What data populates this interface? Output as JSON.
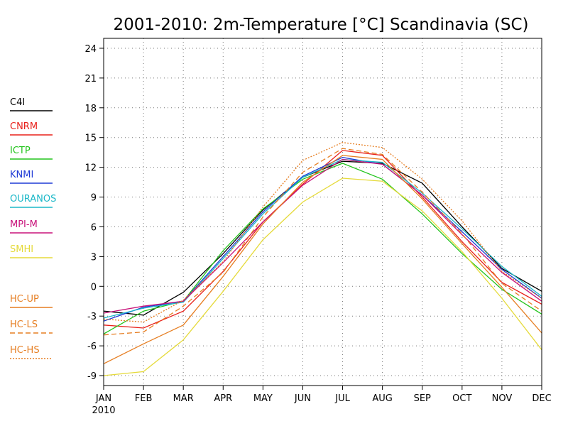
{
  "chart_data": {
    "type": "line",
    "title": "2001-2010: 2m-Temperature [°C] Scandinavia (SC)",
    "categories": [
      "JAN",
      "FEB",
      "MAR",
      "APR",
      "MAY",
      "JUN",
      "JUL",
      "AUG",
      "SEP",
      "OCT",
      "NOV",
      "DEC"
    ],
    "x_sublabel": "2010",
    "ylim": [
      -10,
      25
    ],
    "yticks": [
      -9,
      -6,
      -3,
      0,
      3,
      6,
      9,
      12,
      15,
      18,
      21,
      24
    ],
    "grid": true,
    "legend_position": "left",
    "series": [
      {
        "name": "C4I",
        "color": "#000000",
        "style": "solid",
        "values": [
          -2.5,
          -2.9,
          -0.6,
          3.3,
          7.7,
          11.0,
          12.6,
          12.4,
          10.4,
          6.0,
          1.8,
          -0.5
        ]
      },
      {
        "name": "CNRM",
        "color": "#e8201a",
        "style": "solid",
        "values": [
          -3.9,
          -4.2,
          -2.5,
          1.5,
          6.5,
          10.3,
          13.7,
          13.2,
          9.0,
          4.5,
          0.4,
          -1.8
        ]
      },
      {
        "name": "ICTP",
        "color": "#22c41c",
        "style": "solid",
        "values": [
          -4.8,
          -2.5,
          -1.5,
          3.6,
          7.8,
          10.8,
          12.4,
          10.8,
          7.3,
          3.3,
          -0.3,
          -2.8
        ]
      },
      {
        "name": "KNMI",
        "color": "#1f3ad6",
        "style": "solid",
        "values": [
          -3.5,
          -2.1,
          -1.5,
          3.0,
          7.5,
          11.1,
          13.0,
          12.3,
          9.2,
          5.5,
          1.7,
          -1.2
        ]
      },
      {
        "name": "OURANOS",
        "color": "#1cb8c8",
        "style": "solid",
        "values": [
          -3.2,
          -2.2,
          -1.6,
          2.8,
          7.3,
          11.0,
          12.8,
          12.5,
          9.4,
          5.8,
          2.0,
          -1.0
        ]
      },
      {
        "name": "MPI-M",
        "color": "#c8127a",
        "style": "solid",
        "values": [
          -2.7,
          -2.0,
          -1.5,
          2.4,
          6.5,
          10.2,
          12.8,
          12.3,
          9.2,
          5.2,
          1.4,
          -1.5
        ]
      },
      {
        "name": "SMHI",
        "color": "#e5da3a",
        "style": "solid",
        "values": [
          -9.0,
          -8.6,
          -5.4,
          -0.5,
          4.7,
          8.5,
          10.9,
          10.6,
          7.6,
          3.5,
          -1.2,
          -6.4
        ]
      },
      {
        "name": "HC-UP",
        "color": "#e67e22",
        "style": "solid",
        "values": [
          -7.8,
          -5.8,
          -3.9,
          1.0,
          6.3,
          10.5,
          13.2,
          12.8,
          8.8,
          4.3,
          -0.1,
          -4.7
        ]
      },
      {
        "name": "HC-LS",
        "color": "#e67e22",
        "style": "dashed",
        "values": [
          -4.9,
          -4.6,
          -2.0,
          1.4,
          7.0,
          11.5,
          13.9,
          13.3,
          9.5,
          5.3,
          0.3,
          -2.5
        ]
      },
      {
        "name": "HC-HS",
        "color": "#e67e22",
        "style": "dotted",
        "values": [
          -3.3,
          -3.6,
          -1.4,
          2.5,
          8.0,
          12.7,
          14.5,
          14.0,
          10.8,
          6.6,
          1.5,
          -1.2
        ]
      }
    ]
  }
}
